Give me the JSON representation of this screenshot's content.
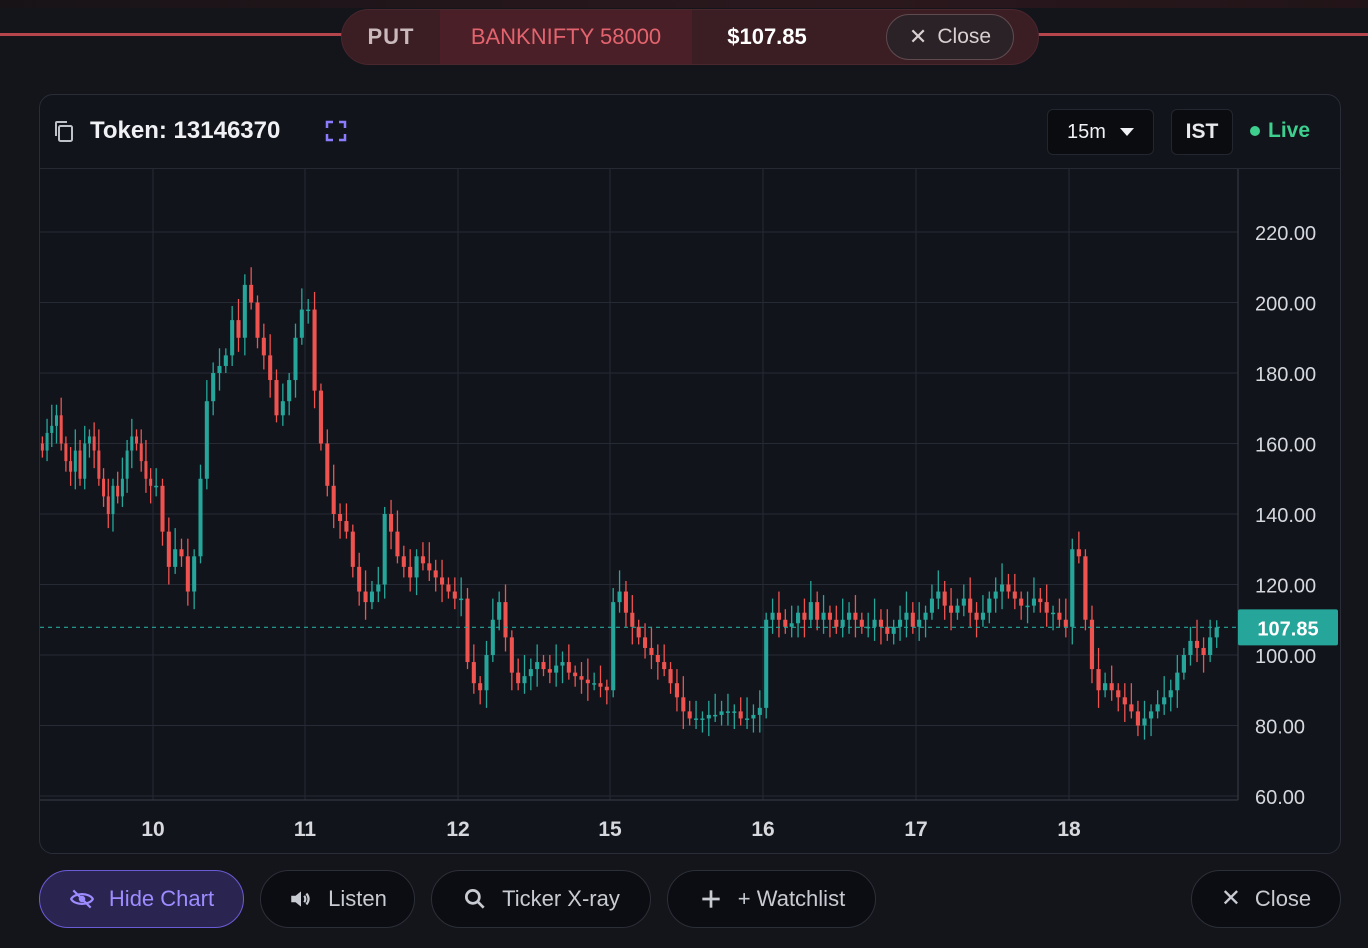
{
  "position": {
    "type": "PUT",
    "symbol": "BANKNIFTY 58000",
    "price": "$107.85",
    "close_label": "Close"
  },
  "chart_header": {
    "token_label": "Token: 13146370",
    "interval": "15m",
    "timezone": "IST",
    "status": "Live"
  },
  "chart_data": {
    "type": "candlestick",
    "x_tick_labels": [
      "10",
      "11",
      "12",
      "15",
      "16",
      "17",
      "18"
    ],
    "y_tick_labels": [
      "220.00",
      "200.00",
      "180.00",
      "160.00",
      "140.00",
      "120.00",
      "100.00",
      "80.00",
      "60.00"
    ],
    "ylim": [
      60,
      222
    ],
    "last_price": 107.85,
    "last_price_label": "107.85",
    "grid": true,
    "colors": {
      "up": "#26a69a",
      "down": "#ef5350",
      "last_price": "#26a69a"
    },
    "candles": [
      {
        "day": "9",
        "close": [
          158,
          163,
          165,
          168,
          160,
          155,
          152,
          158,
          150,
          160,
          162,
          158,
          150,
          145,
          140,
          148,
          145,
          150,
          158,
          162,
          160,
          155,
          150,
          148
        ]
      },
      {
        "day": "10",
        "close": [
          148,
          135,
          125,
          130,
          128,
          118,
          128,
          150,
          172,
          180,
          182,
          185,
          195,
          190,
          205,
          200,
          190,
          185,
          178,
          168,
          172,
          178,
          190,
          198
        ]
      },
      {
        "day": "11",
        "close": [
          198,
          175,
          160,
          148,
          140,
          138,
          135,
          125,
          118,
          115,
          118,
          120,
          140,
          135,
          128,
          125,
          122,
          128,
          126,
          124,
          122,
          120,
          118,
          116
        ]
      },
      {
        "day": "12",
        "close": [
          116,
          98,
          92,
          90,
          100,
          110,
          115,
          105,
          95,
          92,
          94,
          96,
          98,
          96,
          95,
          97,
          98,
          95,
          94,
          93,
          92,
          92,
          91,
          90
        ]
      },
      {
        "day": "15",
        "close": [
          115,
          118,
          112,
          108,
          105,
          102,
          100,
          98,
          96,
          92,
          88,
          84,
          82,
          82,
          82,
          83,
          83,
          84,
          84,
          84,
          82,
          82,
          83,
          85
        ]
      },
      {
        "day": "16",
        "close": [
          110,
          112,
          110,
          108,
          109,
          112,
          110,
          115,
          110,
          112,
          110,
          108,
          110,
          112,
          110,
          108,
          108,
          110,
          108,
          106,
          108,
          110,
          112,
          108
        ]
      },
      {
        "day": "17",
        "close": [
          110,
          112,
          116,
          118,
          114,
          112,
          114,
          116,
          112,
          110,
          112,
          116,
          118,
          120,
          118,
          116,
          114,
          114,
          116,
          115,
          112,
          112,
          110,
          108
        ]
      },
      {
        "day": "18",
        "close": [
          130,
          128,
          110,
          96,
          90,
          92,
          90,
          88,
          86,
          84,
          80,
          82,
          84,
          86,
          88,
          90,
          95,
          100,
          104,
          102,
          100,
          105,
          107.85
        ]
      }
    ]
  },
  "toolbar": {
    "hide_chart": "Hide Chart",
    "listen": "Listen",
    "xray": "Ticker X-ray",
    "watchlist": "+ Watchlist",
    "close": "Close"
  }
}
